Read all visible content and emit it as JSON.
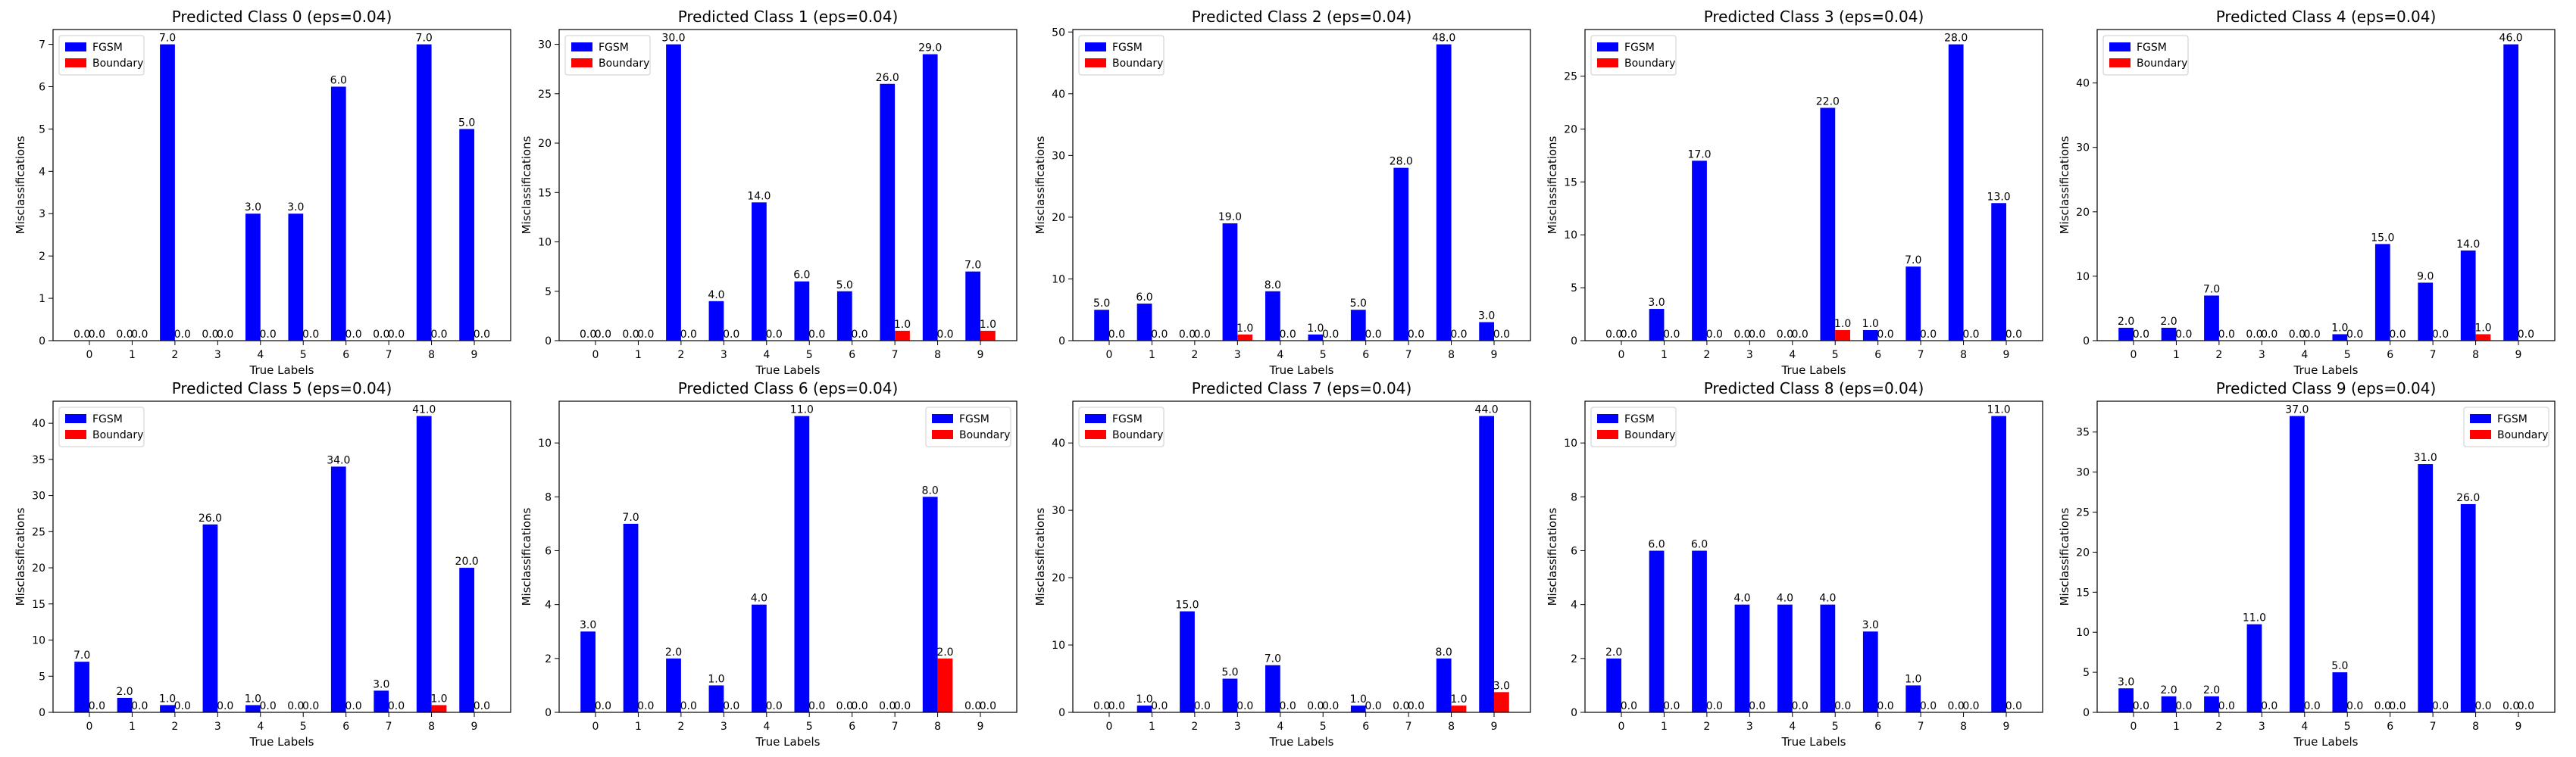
{
  "legend_labels": [
    "FGSM",
    "Boundary"
  ],
  "colors": {
    "FGSM": "#0000ff",
    "Boundary": "#ff0000"
  },
  "chart_data": [
    {
      "type": "bar",
      "title": "Predicted Class 0 (eps=0.04)",
      "xlabel": "True Labels",
      "ylabel": "Misclassifications",
      "categories": [
        "0",
        "1",
        "2",
        "3",
        "4",
        "5",
        "6",
        "7",
        "8",
        "9"
      ],
      "series": [
        {
          "name": "FGSM",
          "values": [
            0,
            0,
            7,
            0,
            3,
            3,
            6,
            0,
            7,
            5
          ]
        },
        {
          "name": "Boundary",
          "values": [
            0,
            0,
            0,
            0,
            0,
            0,
            0,
            0,
            0,
            0
          ]
        }
      ],
      "ylim": [
        0,
        7.35
      ],
      "yticks": [
        0,
        1,
        2,
        3,
        4,
        5,
        6,
        7
      ],
      "legend": "top-left"
    },
    {
      "type": "bar",
      "title": "Predicted Class 1 (eps=0.04)",
      "xlabel": "True Labels",
      "ylabel": "Misclassifications",
      "categories": [
        "0",
        "1",
        "2",
        "3",
        "4",
        "5",
        "6",
        "7",
        "8",
        "9"
      ],
      "series": [
        {
          "name": "FGSM",
          "values": [
            0,
            0,
            30,
            4,
            14,
            6,
            5,
            26,
            29,
            7
          ]
        },
        {
          "name": "Boundary",
          "values": [
            0,
            0,
            0,
            0,
            0,
            0,
            0,
            1,
            0,
            1
          ]
        }
      ],
      "ylim": [
        0,
        31.5
      ],
      "yticks": [
        0,
        5,
        10,
        15,
        20,
        25,
        30
      ],
      "legend": "top-left"
    },
    {
      "type": "bar",
      "title": "Predicted Class 2 (eps=0.04)",
      "xlabel": "True Labels",
      "ylabel": "Misclassifications",
      "categories": [
        "0",
        "1",
        "2",
        "3",
        "4",
        "5",
        "6",
        "7",
        "8",
        "9"
      ],
      "series": [
        {
          "name": "FGSM",
          "values": [
            5,
            6,
            0,
            19,
            8,
            1,
            5,
            28,
            48,
            3
          ]
        },
        {
          "name": "Boundary",
          "values": [
            0,
            0,
            0,
            1,
            0,
            0,
            0,
            0,
            0,
            0
          ]
        }
      ],
      "ylim": [
        0,
        50.4
      ],
      "yticks": [
        0,
        10,
        20,
        30,
        40,
        50
      ],
      "legend": "top-left"
    },
    {
      "type": "bar",
      "title": "Predicted Class 3 (eps=0.04)",
      "xlabel": "True Labels",
      "ylabel": "Misclassifications",
      "categories": [
        "0",
        "1",
        "2",
        "3",
        "4",
        "5",
        "6",
        "7",
        "8",
        "9"
      ],
      "series": [
        {
          "name": "FGSM",
          "values": [
            0,
            3,
            17,
            0,
            0,
            22,
            1,
            7,
            28,
            13
          ]
        },
        {
          "name": "Boundary",
          "values": [
            0,
            0,
            0,
            0,
            0,
            1,
            0,
            0,
            0,
            0
          ]
        }
      ],
      "ylim": [
        0,
        29.4
      ],
      "yticks": [
        0,
        5,
        10,
        15,
        20,
        25
      ],
      "legend": "top-left"
    },
    {
      "type": "bar",
      "title": "Predicted Class 4 (eps=0.04)",
      "xlabel": "True Labels",
      "ylabel": "Misclassifications",
      "categories": [
        "0",
        "1",
        "2",
        "3",
        "4",
        "5",
        "6",
        "7",
        "8",
        "9"
      ],
      "series": [
        {
          "name": "FGSM",
          "values": [
            2,
            2,
            7,
            0,
            0,
            1,
            15,
            9,
            14,
            46
          ]
        },
        {
          "name": "Boundary",
          "values": [
            0,
            0,
            0,
            0,
            0,
            0,
            0,
            0,
            1,
            0
          ]
        }
      ],
      "ylim": [
        0,
        48.3
      ],
      "yticks": [
        0,
        10,
        20,
        30,
        40
      ],
      "legend": "top-left"
    },
    {
      "type": "bar",
      "title": "Predicted Class 5 (eps=0.04)",
      "xlabel": "True Labels",
      "ylabel": "Misclassifications",
      "categories": [
        "0",
        "1",
        "2",
        "3",
        "4",
        "5",
        "6",
        "7",
        "8",
        "9"
      ],
      "series": [
        {
          "name": "FGSM",
          "values": [
            7,
            2,
            1,
            26,
            1,
            0,
            34,
            3,
            41,
            20
          ]
        },
        {
          "name": "Boundary",
          "values": [
            0,
            0,
            0,
            0,
            0,
            0,
            0,
            0,
            1,
            0
          ]
        }
      ],
      "ylim": [
        0,
        43.05
      ],
      "yticks": [
        0,
        5,
        10,
        15,
        20,
        25,
        30,
        35,
        40
      ],
      "legend": "top-left"
    },
    {
      "type": "bar",
      "title": "Predicted Class 6 (eps=0.04)",
      "xlabel": "True Labels",
      "ylabel": "Misclassifications",
      "categories": [
        "0",
        "1",
        "2",
        "3",
        "4",
        "5",
        "6",
        "7",
        "8",
        "9"
      ],
      "series": [
        {
          "name": "FGSM",
          "values": [
            3,
            7,
            2,
            1,
            4,
            11,
            0,
            0,
            8,
            0
          ]
        },
        {
          "name": "Boundary",
          "values": [
            0,
            0,
            0,
            0,
            0,
            0,
            0,
            0,
            2,
            0
          ]
        }
      ],
      "ylim": [
        0,
        11.55
      ],
      "yticks": [
        0,
        2,
        4,
        6,
        8,
        10
      ],
      "legend": "top-right"
    },
    {
      "type": "bar",
      "title": "Predicted Class 7 (eps=0.04)",
      "xlabel": "True Labels",
      "ylabel": "Misclassifications",
      "categories": [
        "0",
        "1",
        "2",
        "3",
        "4",
        "5",
        "6",
        "7",
        "8",
        "9"
      ],
      "series": [
        {
          "name": "FGSM",
          "values": [
            0,
            1,
            15,
            5,
            7,
            0,
            1,
            0,
            8,
            44
          ]
        },
        {
          "name": "Boundary",
          "values": [
            0,
            0,
            0,
            0,
            0,
            0,
            0,
            0,
            1,
            3
          ]
        }
      ],
      "ylim": [
        0,
        46.2
      ],
      "yticks": [
        0,
        10,
        20,
        30,
        40
      ],
      "legend": "top-left"
    },
    {
      "type": "bar",
      "title": "Predicted Class 8 (eps=0.04)",
      "xlabel": "True Labels",
      "ylabel": "Misclassifications",
      "categories": [
        "0",
        "1",
        "2",
        "3",
        "4",
        "5",
        "6",
        "7",
        "8",
        "9"
      ],
      "series": [
        {
          "name": "FGSM",
          "values": [
            2,
            6,
            6,
            4,
            4,
            4,
            3,
            1,
            0,
            11
          ]
        },
        {
          "name": "Boundary",
          "values": [
            0,
            0,
            0,
            0,
            0,
            0,
            0,
            0,
            0,
            0
          ]
        }
      ],
      "ylim": [
        0,
        11.55
      ],
      "yticks": [
        0,
        2,
        4,
        6,
        8,
        10
      ],
      "legend": "top-left"
    },
    {
      "type": "bar",
      "title": "Predicted Class 9 (eps=0.04)",
      "xlabel": "True Labels",
      "ylabel": "Misclassifications",
      "categories": [
        "0",
        "1",
        "2",
        "3",
        "4",
        "5",
        "6",
        "7",
        "8",
        "9"
      ],
      "series": [
        {
          "name": "FGSM",
          "values": [
            3,
            2,
            2,
            11,
            37,
            5,
            0,
            31,
            26,
            0
          ]
        },
        {
          "name": "Boundary",
          "values": [
            0,
            0,
            0,
            0,
            0,
            0,
            0,
            0,
            0,
            0
          ]
        }
      ],
      "ylim": [
        0,
        38.85
      ],
      "yticks": [
        0,
        5,
        10,
        15,
        20,
        25,
        30,
        35
      ],
      "legend": "top-right"
    }
  ]
}
